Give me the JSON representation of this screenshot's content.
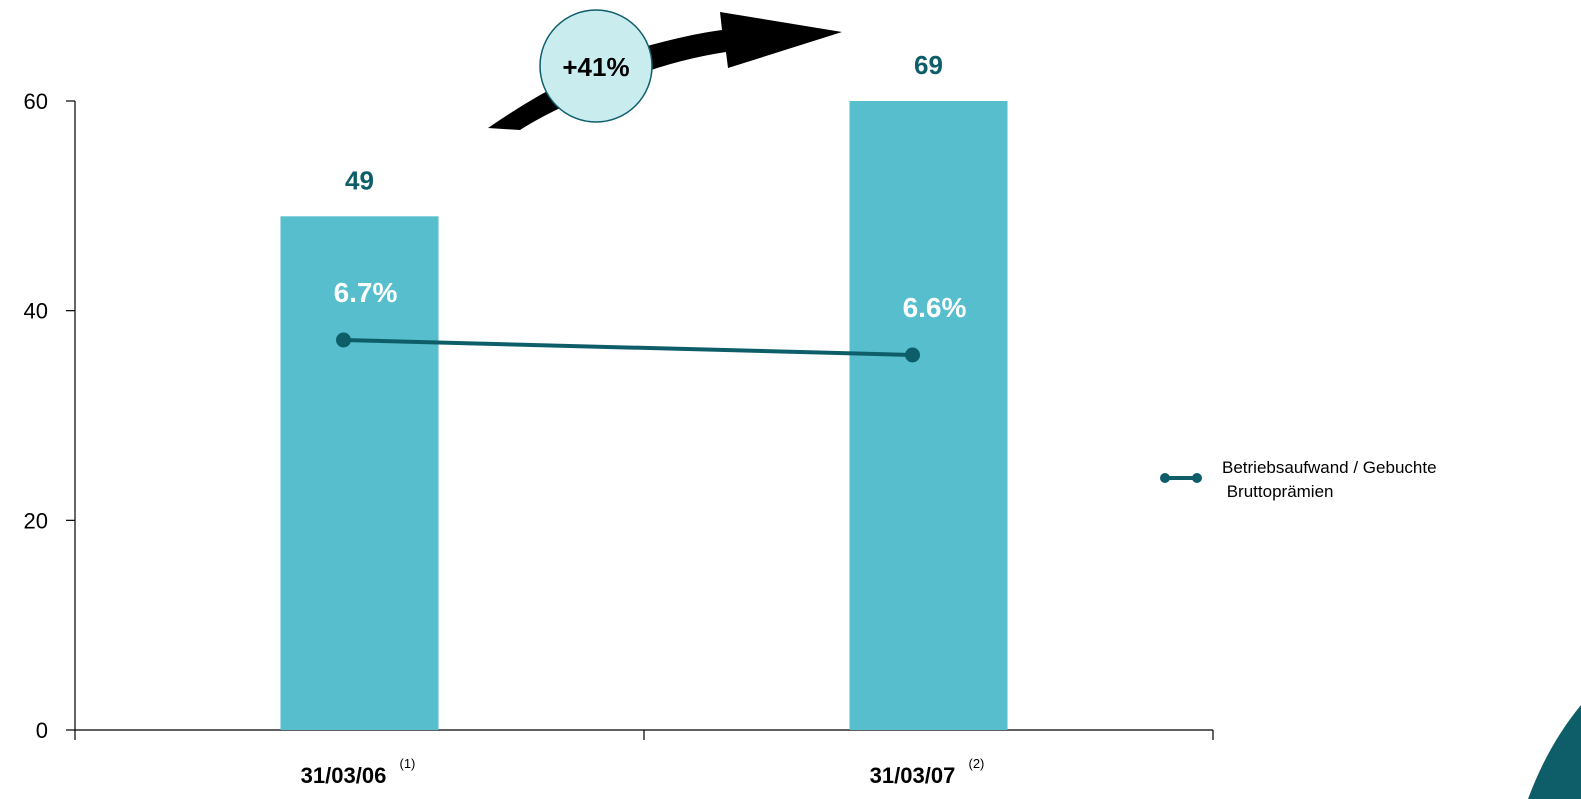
{
  "chart_data": {
    "type": "bar",
    "categories": [
      "31/03/06",
      "31/03/07"
    ],
    "category_notes": [
      "(1)",
      "(2)"
    ],
    "values": [
      49,
      69
    ],
    "bar_value_labels": [
      "49",
      "69"
    ],
    "ylim": [
      0,
      60
    ],
    "yticks": [
      0,
      20,
      40,
      60
    ],
    "grid": false,
    "line_series": {
      "name_lines": [
        "Betriebsaufwand / Gebuchte",
        " Bruttoprämien"
      ],
      "values": [
        6.7,
        6.6
      ],
      "labels": [
        "6.7%",
        "6.6%"
      ]
    },
    "growth_annotation": "+41%",
    "legend_position": "right",
    "colors": {
      "bar": "#56BECC",
      "line": "#0E5E6A",
      "value_label": "#0E5E6A",
      "growth_bubble": "#C9ECEF"
    }
  }
}
